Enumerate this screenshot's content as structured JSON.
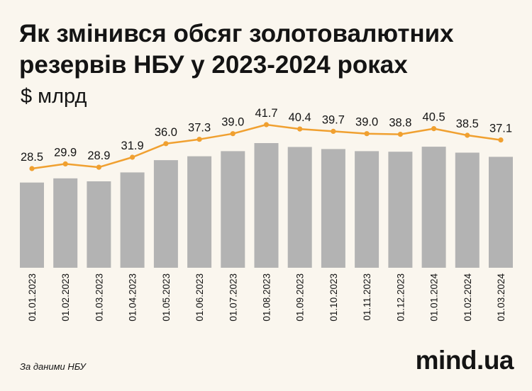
{
  "header": {
    "title": "Як змінився обсяг золотовалютних резервів НБУ у 2023-2024 роках",
    "unit": "$ млрд"
  },
  "footer": {
    "source": "За даними НБУ",
    "logo": "mind.ua"
  },
  "colors": {
    "bar": "#b3b3b3",
    "line": "#f0a030",
    "text": "#141414",
    "background": "#faf6ee"
  },
  "chart_data": {
    "type": "bar",
    "title": "Як змінився обсяг золотовалютних резервів НБУ у 2023-2024 роках",
    "ylabel": "$ млрд",
    "categories": [
      "01.01.2023",
      "01.02.2023",
      "01.03.2023",
      "01.04.2023",
      "01.05.2023",
      "01.06.2023",
      "01.07.2023",
      "01.08.2023",
      "01.09.2023",
      "01.10.2023",
      "01.11.2023",
      "01.12.2023",
      "01.01.2024",
      "01.02.2024",
      "01.03.2024"
    ],
    "values": [
      28.5,
      29.9,
      28.9,
      31.9,
      36.0,
      37.3,
      39.0,
      41.7,
      40.4,
      39.7,
      39.0,
      38.8,
      40.5,
      38.5,
      37.1
    ],
    "value_labels": [
      "28.5",
      "29.9",
      "28.9",
      "31.9",
      "36.0",
      "37.3",
      "39.0",
      "41.7",
      "40.4",
      "39.7",
      "39.0",
      "38.8",
      "40.5",
      "38.5",
      "37.1"
    ],
    "overlay": "line",
    "grid": false,
    "legend": "none"
  }
}
